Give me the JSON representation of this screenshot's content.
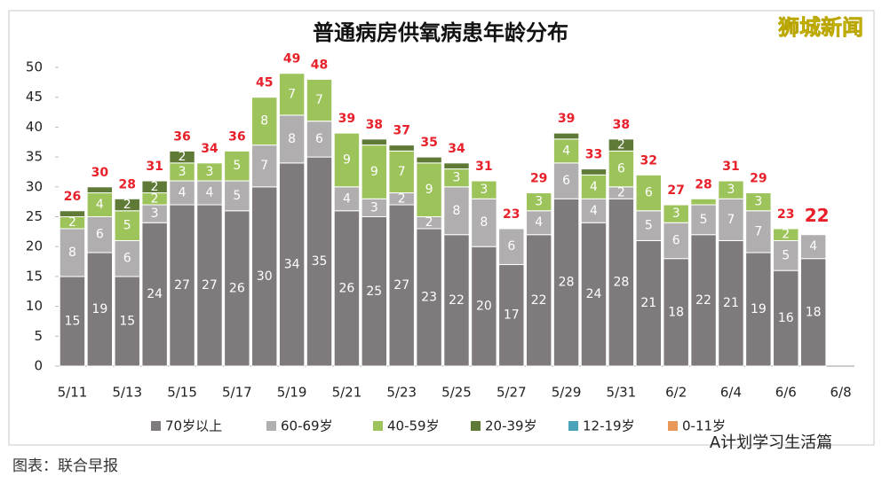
{
  "chart_data": {
    "type": "stacked-bar",
    "title": "普通病房供氧病患年龄分布",
    "watermark": "狮城新闻",
    "source": "图表：联合早报",
    "footer_badge": "A计划学习生活篇",
    "categories": [
      "5/11",
      null,
      "5/13",
      null,
      "5/15",
      null,
      "5/17",
      null,
      "5/19",
      null,
      "5/21",
      null,
      "5/23",
      null,
      "5/25",
      null,
      "5/27",
      null,
      "5/29",
      null,
      "5/31",
      null,
      "6/2",
      null,
      "6/4",
      null,
      "6/6",
      null,
      "6/8"
    ],
    "series": [
      {
        "name": "70岁以上",
        "color": "#7f7b7d",
        "values": [
          15,
          19,
          15,
          24,
          27,
          27,
          26,
          30,
          34,
          35,
          26,
          25,
          27,
          23,
          22,
          20,
          17,
          22,
          28,
          24,
          28,
          21,
          18,
          22,
          21,
          19,
          16,
          18,
          null
        ]
      },
      {
        "name": "60-69岁",
        "color": "#b1aeaf",
        "values": [
          8,
          6,
          6,
          3,
          4,
          4,
          5,
          7,
          8,
          6,
          4,
          3,
          2,
          2,
          8,
          8,
          6,
          4,
          6,
          4,
          2,
          5,
          6,
          5,
          7,
          7,
          5,
          4,
          null
        ]
      },
      {
        "name": "40-59岁",
        "color": "#9dc35b",
        "values": [
          2,
          4,
          5,
          2,
          3,
          3,
          5,
          8,
          7,
          7,
          9,
          9,
          7,
          9,
          3,
          3,
          0,
          3,
          4,
          4,
          6,
          6,
          3,
          1,
          3,
          3,
          2,
          0,
          null
        ]
      },
      {
        "name": "20-39岁",
        "color": "#5f7a36",
        "values": [
          1,
          1,
          2,
          2,
          2,
          0,
          0,
          0,
          0,
          0,
          0,
          1,
          1,
          1,
          1,
          0,
          0,
          0,
          1,
          1,
          2,
          0,
          0,
          0,
          0,
          0,
          0,
          0,
          null
        ]
      },
      {
        "name": "12-19岁",
        "color": "#4ba3b9",
        "values": [
          0,
          0,
          0,
          0,
          0,
          0,
          0,
          0,
          0,
          0,
          0,
          0,
          0,
          0,
          0,
          0,
          0,
          0,
          0,
          0,
          0,
          0,
          0,
          0,
          0,
          0,
          0,
          0,
          null
        ]
      },
      {
        "name": "0-11岁",
        "color": "#e8995a",
        "values": [
          0,
          0,
          0,
          0,
          0,
          0,
          0,
          0,
          0,
          0,
          0,
          0,
          0,
          0,
          0,
          0,
          0,
          0,
          0,
          0,
          0,
          0,
          0,
          0,
          0,
          0,
          0,
          0,
          null
        ]
      }
    ],
    "totals": [
      26,
      30,
      28,
      31,
      36,
      34,
      36,
      45,
      49,
      48,
      39,
      38,
      37,
      35,
      34,
      31,
      23,
      29,
      39,
      33,
      38,
      32,
      27,
      28,
      31,
      29,
      23,
      22,
      null
    ],
    "total_color": "#e8202a",
    "ylim": [
      0,
      50
    ],
    "yticks": [
      0,
      5,
      10,
      15,
      20,
      25,
      30,
      35,
      40,
      45,
      50
    ]
  }
}
